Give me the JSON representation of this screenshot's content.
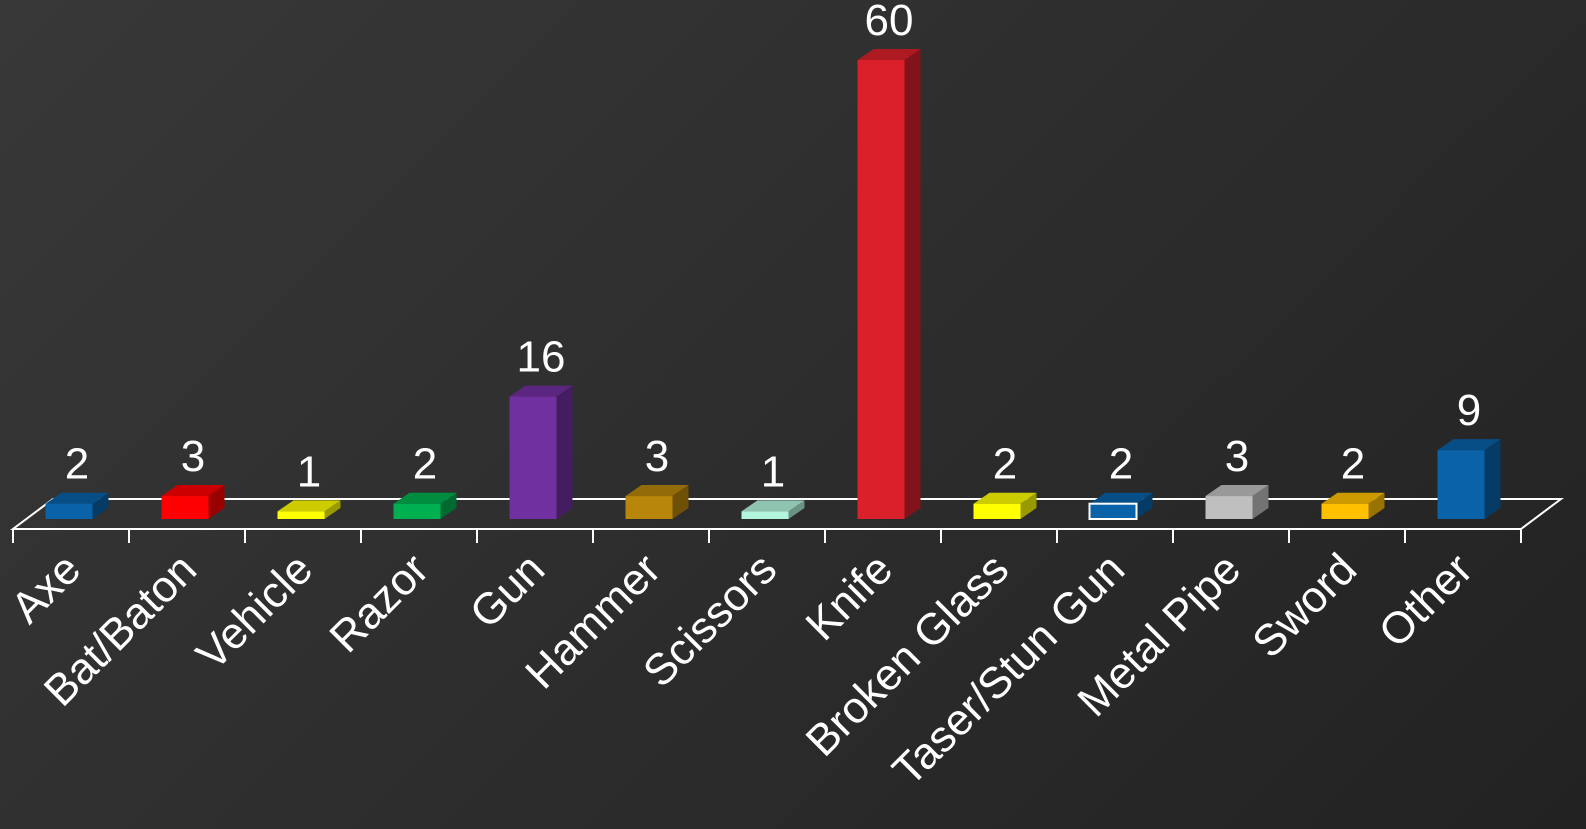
{
  "chart_data": {
    "type": "bar",
    "title": "",
    "xlabel": "",
    "ylabel": "",
    "ylim": [
      0,
      60
    ],
    "grid": false,
    "legend": "none",
    "categories": [
      "Axe",
      "Bat/Baton",
      "Vehicle",
      "Razor",
      "Gun",
      "Hammer",
      "Scissors",
      "Knife",
      "Broken Glass",
      "Taser/Stun Gun",
      "Metal Pipe",
      "Sword",
      "Other"
    ],
    "values": [
      2,
      3,
      1,
      2,
      16,
      3,
      1,
      60,
      2,
      2,
      3,
      2,
      9
    ],
    "colors": [
      "#0a62a8",
      "#ff0000",
      "#ffff00",
      "#00b050",
      "#7030a0",
      "#b8860b",
      "#b3f5dc",
      "#d9202b",
      "#ffff00",
      "#0a62a8",
      "#bfbfbf",
      "#ffc000",
      "#0a62a8"
    ]
  }
}
